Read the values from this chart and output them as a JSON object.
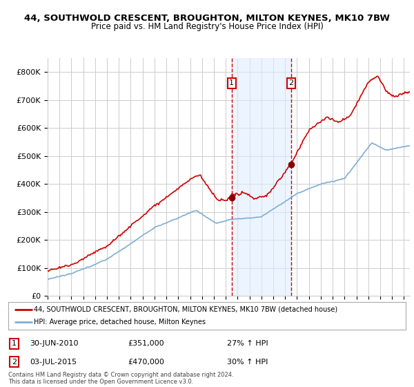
{
  "title_line1": "44, SOUTHWOLD CRESCENT, BROUGHTON, MILTON KEYNES, MK10 7BW",
  "title_line2": "Price paid vs. HM Land Registry's House Price Index (HPI)",
  "hpi_color": "#7fadd4",
  "price_color": "#cc0000",
  "marker_color": "#880000",
  "annotation_bg": "#ddeeff",
  "sale1_x": 2010.5,
  "sale1_y": 351000,
  "sale2_x": 2015.5,
  "sale2_y": 470000,
  "sale1_date": "30-JUN-2010",
  "sale1_price": "£351,000",
  "sale1_pct": "27% ↑ HPI",
  "sale2_date": "03-JUL-2015",
  "sale2_price": "£470,000",
  "sale2_pct": "30% ↑ HPI",
  "legend_line1": "44, SOUTHWOLD CRESCENT, BROUGHTON, MILTON KEYNES, MK10 7BW (detached house)",
  "legend_line2": "HPI: Average price, detached house, Milton Keynes",
  "footer": "Contains HM Land Registry data © Crown copyright and database right 2024.\nThis data is licensed under the Open Government Licence v3.0.",
  "background_color": "#ffffff",
  "grid_color": "#cccccc",
  "ylim": [
    0,
    850000
  ],
  "xlim_start": 1995,
  "xlim_end": 2025.5
}
